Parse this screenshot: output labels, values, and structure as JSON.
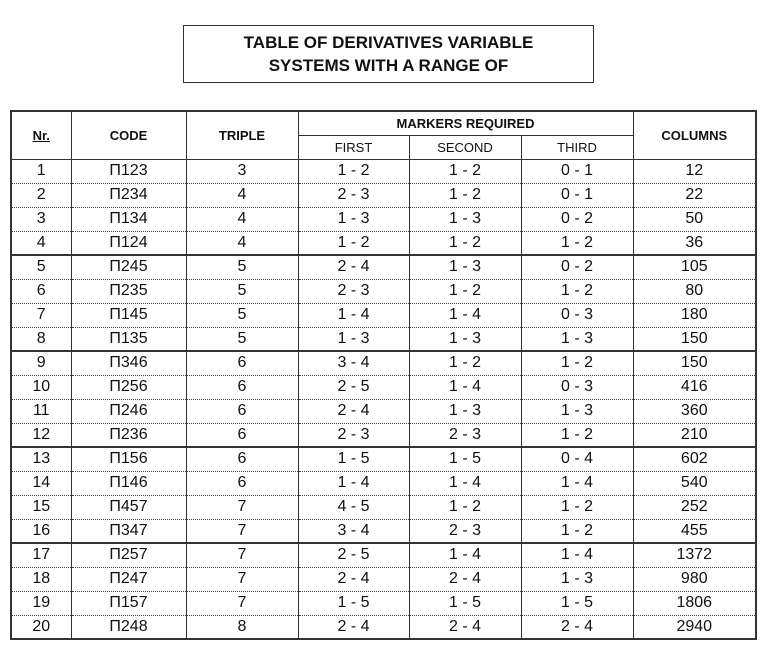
{
  "title": [
    "TABLE OF DERIVATIVES VARIABLE",
    "SYSTEMS WITH A RANGE OF"
  ],
  "table": {
    "headers": {
      "nr": "Nr.",
      "code": "CODE",
      "triple": "TRIPLE",
      "markers": "MARKERS REQUIRED",
      "first": "FIRST",
      "second": "SECOND",
      "third": "THIRD",
      "columns": "COLUMNS"
    },
    "rows": [
      [
        1,
        "П123",
        3,
        "1 - 2",
        "1 - 2",
        "0 - 1",
        12
      ],
      [
        2,
        "П234",
        4,
        "2 - 3",
        "1 - 2",
        "0 - 1",
        22
      ],
      [
        3,
        "П134",
        4,
        "1 - 3",
        "1 - 3",
        "0 - 2",
        50
      ],
      [
        4,
        "П124",
        4,
        "1 - 2",
        "1 - 2",
        "1 - 2",
        36
      ],
      [
        5,
        "П245",
        5,
        "2 - 4",
        "1 - 3",
        "0 - 2",
        105
      ],
      [
        6,
        "П235",
        5,
        "2 - 3",
        "1 - 2",
        "1 - 2",
        80
      ],
      [
        7,
        "П145",
        5,
        "1 - 4",
        "1 - 4",
        "0 - 3",
        180
      ],
      [
        8,
        "П135",
        5,
        "1 - 3",
        "1 - 3",
        "1 - 3",
        150
      ],
      [
        9,
        "П346",
        6,
        "3 - 4",
        "1 - 2",
        "1 - 2",
        150
      ],
      [
        10,
        "П256",
        6,
        "2 - 5",
        "1 - 4",
        "0 - 3",
        416
      ],
      [
        11,
        "П246",
        6,
        "2 - 4",
        "1 - 3",
        "1 - 3",
        360
      ],
      [
        12,
        "П236",
        6,
        "2 - 3",
        "2 - 3",
        "1 - 2",
        210
      ],
      [
        13,
        "П156",
        6,
        "1 - 5",
        "1 - 5",
        "0 - 4",
        602
      ],
      [
        14,
        "П146",
        6,
        "1 - 4",
        "1 - 4",
        "1 - 4",
        540
      ],
      [
        15,
        "П457",
        7,
        "4 - 5",
        "1 - 2",
        "1 - 2",
        252
      ],
      [
        16,
        "П347",
        7,
        "3 - 4",
        "2 - 3",
        "1 - 2",
        455
      ],
      [
        17,
        "П257",
        7,
        "2 - 5",
        "1 - 4",
        "1 - 4",
        1372
      ],
      [
        18,
        "П247",
        7,
        "2 - 4",
        "2 - 4",
        "1 - 3",
        980
      ],
      [
        19,
        "П157",
        7,
        "1 - 5",
        "1 - 5",
        "1 - 5",
        1806
      ],
      [
        20,
        "П248",
        8,
        "2 - 4",
        "2 - 4",
        "2 - 4",
        2940
      ]
    ]
  }
}
